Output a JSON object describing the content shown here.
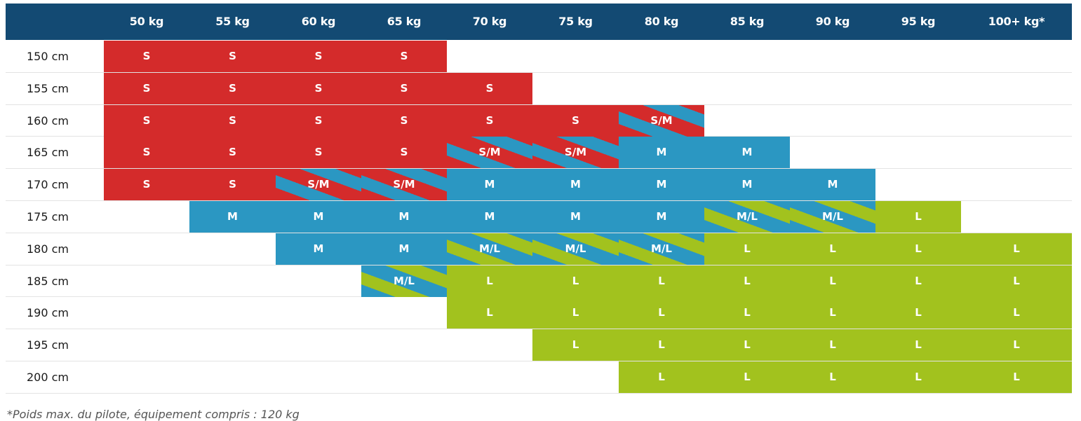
{
  "chart_data": {
    "type": "table",
    "columns": [
      "50 kg",
      "55 kg",
      "60 kg",
      "65 kg",
      "70 kg",
      "75 kg",
      "80 kg",
      "85 kg",
      "90 kg",
      "95 kg",
      "100+ kg*"
    ],
    "rows": [
      {
        "label": "150 cm",
        "cells": [
          "S",
          "S",
          "S",
          "S",
          "",
          "",
          "",
          "",
          "",
          "",
          ""
        ]
      },
      {
        "label": "155 cm",
        "cells": [
          "S",
          "S",
          "S",
          "S",
          "S",
          "",
          "",
          "",
          "",
          "",
          ""
        ]
      },
      {
        "label": "160 cm",
        "cells": [
          "S",
          "S",
          "S",
          "S",
          "S",
          "S",
          "S/M",
          "",
          "",
          "",
          ""
        ]
      },
      {
        "label": "165 cm",
        "cells": [
          "S",
          "S",
          "S",
          "S",
          "S/M",
          "S/M",
          "M",
          "M",
          "",
          "",
          ""
        ]
      },
      {
        "label": "170 cm",
        "cells": [
          "S",
          "S",
          "S/M",
          "S/M",
          "M",
          "M",
          "M",
          "M",
          "M",
          "",
          ""
        ]
      },
      {
        "label": "175 cm",
        "cells": [
          "",
          "M",
          "M",
          "M",
          "M",
          "M",
          "M",
          "M/L",
          "M/L",
          "L",
          ""
        ]
      },
      {
        "label": "180 cm",
        "cells": [
          "",
          "",
          "M",
          "M",
          "M/L",
          "M/L",
          "M/L",
          "L",
          "L",
          "L",
          "L"
        ]
      },
      {
        "label": "185 cm",
        "cells": [
          "",
          "",
          "",
          "M/L",
          "L",
          "L",
          "L",
          "L",
          "L",
          "L",
          "L"
        ]
      },
      {
        "label": "190 cm",
        "cells": [
          "",
          "",
          "",
          "",
          "L",
          "L",
          "L",
          "L",
          "L",
          "L",
          "L"
        ]
      },
      {
        "label": "195 cm",
        "cells": [
          "",
          "",
          "",
          "",
          "",
          "L",
          "L",
          "L",
          "L",
          "L",
          "L"
        ]
      },
      {
        "label": "200 cm",
        "cells": [
          "",
          "",
          "",
          "",
          "",
          "",
          "L",
          "L",
          "L",
          "L",
          "L"
        ]
      }
    ],
    "colors": {
      "S": "#d42b2b",
      "M": "#2b97c2",
      "L": "#a2c21e",
      "header": "#134a73"
    }
  },
  "footnote": "*Poids max. du pilote, équipement compris : 120 kg"
}
